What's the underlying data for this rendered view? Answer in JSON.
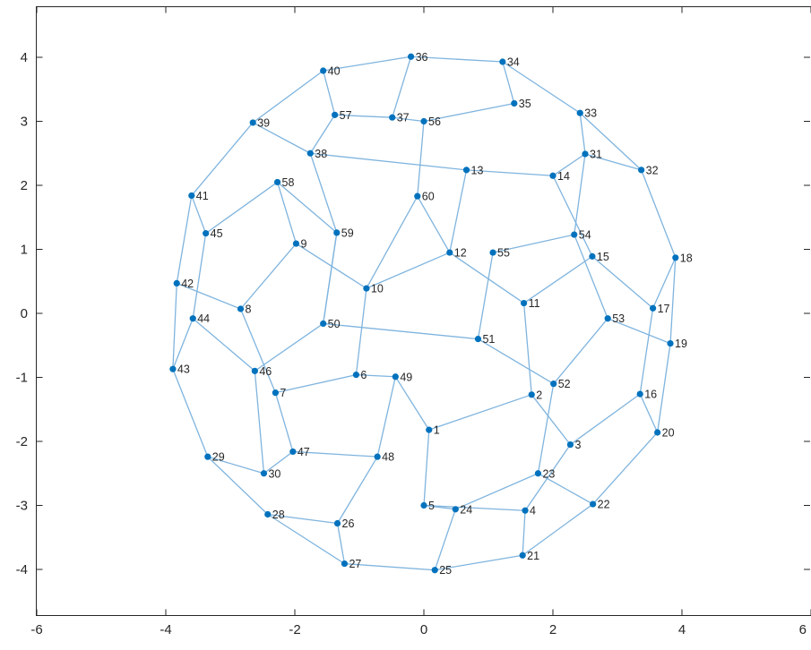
{
  "colors": {
    "edge": "#7fb4de",
    "node": "#0072bd",
    "axis": "#262626",
    "background": "#ffffff"
  },
  "chart_data": {
    "type": "graph",
    "title": "",
    "xlabel": "",
    "ylabel": "",
    "xlim": [
      -6,
      6
    ],
    "ylim": [
      -4.7,
      4.7
    ],
    "xticks": [
      -6,
      -4,
      -2,
      0,
      2,
      4,
      6
    ],
    "yticks": [
      -4,
      -3,
      -2,
      -1,
      0,
      1,
      2,
      3,
      4
    ],
    "xtick_labels": [
      "-6",
      "-4",
      "-2",
      "0",
      "2",
      "4",
      "6"
    ],
    "ytick_labels": [
      "-4",
      "-3",
      "-2",
      "-1",
      "0",
      "1",
      "2",
      "3",
      "4"
    ],
    "grid": false,
    "box": true,
    "nodes": [
      {
        "id": "1",
        "x": 0.08,
        "y": -1.82
      },
      {
        "id": "2",
        "x": 1.67,
        "y": -1.27
      },
      {
        "id": "3",
        "x": 2.27,
        "y": -2.05
      },
      {
        "id": "4",
        "x": 1.57,
        "y": -3.08
      },
      {
        "id": "5",
        "x": 0.0,
        "y": -3.0
      },
      {
        "id": "6",
        "x": -1.05,
        "y": -0.96
      },
      {
        "id": "7",
        "x": -2.3,
        "y": -1.24
      },
      {
        "id": "8",
        "x": -2.84,
        "y": 0.07
      },
      {
        "id": "9",
        "x": -1.98,
        "y": 1.09
      },
      {
        "id": "10",
        "x": -0.89,
        "y": 0.39
      },
      {
        "id": "11",
        "x": 1.55,
        "y": 0.16
      },
      {
        "id": "12",
        "x": 0.4,
        "y": 0.95
      },
      {
        "id": "13",
        "x": 0.66,
        "y": 2.24
      },
      {
        "id": "14",
        "x": 2.0,
        "y": 2.15
      },
      {
        "id": "15",
        "x": 2.61,
        "y": 0.89
      },
      {
        "id": "16",
        "x": 3.35,
        "y": -1.26
      },
      {
        "id": "17",
        "x": 3.55,
        "y": 0.08
      },
      {
        "id": "18",
        "x": 3.9,
        "y": 0.87
      },
      {
        "id": "19",
        "x": 3.82,
        "y": -0.47
      },
      {
        "id": "20",
        "x": 3.62,
        "y": -1.86
      },
      {
        "id": "21",
        "x": 1.53,
        "y": -3.78
      },
      {
        "id": "22",
        "x": 2.62,
        "y": -2.98
      },
      {
        "id": "23",
        "x": 1.77,
        "y": -2.5
      },
      {
        "id": "24",
        "x": 0.49,
        "y": -3.06
      },
      {
        "id": "25",
        "x": 0.17,
        "y": -4.01
      },
      {
        "id": "26",
        "x": -1.34,
        "y": -3.28
      },
      {
        "id": "27",
        "x": -1.23,
        "y": -3.91
      },
      {
        "id": "28",
        "x": -2.42,
        "y": -3.14
      },
      {
        "id": "29",
        "x": -3.35,
        "y": -2.24
      },
      {
        "id": "30",
        "x": -2.48,
        "y": -2.5
      },
      {
        "id": "31",
        "x": 2.5,
        "y": 2.49
      },
      {
        "id": "32",
        "x": 3.37,
        "y": 2.24
      },
      {
        "id": "33",
        "x": 2.42,
        "y": 3.13
      },
      {
        "id": "34",
        "x": 1.22,
        "y": 3.93
      },
      {
        "id": "35",
        "x": 1.4,
        "y": 3.28
      },
      {
        "id": "36",
        "x": -0.2,
        "y": 4.01
      },
      {
        "id": "37",
        "x": -0.49,
        "y": 3.06
      },
      {
        "id": "38",
        "x": -1.76,
        "y": 2.5
      },
      {
        "id": "39",
        "x": -2.65,
        "y": 2.98
      },
      {
        "id": "40",
        "x": -1.56,
        "y": 3.79
      },
      {
        "id": "41",
        "x": -3.6,
        "y": 1.84
      },
      {
        "id": "42",
        "x": -3.83,
        "y": 0.47
      },
      {
        "id": "43",
        "x": -3.89,
        "y": -0.87
      },
      {
        "id": "44",
        "x": -3.58,
        "y": -0.08
      },
      {
        "id": "45",
        "x": -3.38,
        "y": 1.25
      },
      {
        "id": "46",
        "x": -2.62,
        "y": -0.9
      },
      {
        "id": "47",
        "x": -2.03,
        "y": -2.16
      },
      {
        "id": "48",
        "x": -0.72,
        "y": -2.24
      },
      {
        "id": "49",
        "x": -0.44,
        "y": -0.99
      },
      {
        "id": "50",
        "x": -1.56,
        "y": -0.16
      },
      {
        "id": "51",
        "x": 0.84,
        "y": -0.4
      },
      {
        "id": "52",
        "x": 2.01,
        "y": -1.1
      },
      {
        "id": "53",
        "x": 2.85,
        "y": -0.08
      },
      {
        "id": "54",
        "x": 2.33,
        "y": 1.23
      },
      {
        "id": "55",
        "x": 1.07,
        "y": 0.95
      },
      {
        "id": "56",
        "x": 0.0,
        "y": 3.0
      },
      {
        "id": "57",
        "x": -1.38,
        "y": 3.1
      },
      {
        "id": "58",
        "x": -2.27,
        "y": 2.05
      },
      {
        "id": "59",
        "x": -1.35,
        "y": 1.26
      },
      {
        "id": "60",
        "x": -0.1,
        "y": 1.83
      }
    ],
    "edges": [
      [
        "1",
        "2"
      ],
      [
        "1",
        "5"
      ],
      [
        "1",
        "49"
      ],
      [
        "2",
        "3"
      ],
      [
        "2",
        "11"
      ],
      [
        "3",
        "4"
      ],
      [
        "3",
        "16"
      ],
      [
        "4",
        "5"
      ],
      [
        "4",
        "21"
      ],
      [
        "5",
        "24"
      ],
      [
        "6",
        "7"
      ],
      [
        "6",
        "10"
      ],
      [
        "6",
        "49"
      ],
      [
        "7",
        "8"
      ],
      [
        "7",
        "47"
      ],
      [
        "8",
        "9"
      ],
      [
        "8",
        "42"
      ],
      [
        "9",
        "10"
      ],
      [
        "9",
        "58"
      ],
      [
        "10",
        "12"
      ],
      [
        "11",
        "12"
      ],
      [
        "11",
        "15"
      ],
      [
        "12",
        "13"
      ],
      [
        "13",
        "14"
      ],
      [
        "13",
        "38"
      ],
      [
        "14",
        "15"
      ],
      [
        "14",
        "31"
      ],
      [
        "15",
        "17"
      ],
      [
        "16",
        "17"
      ],
      [
        "16",
        "20"
      ],
      [
        "17",
        "18"
      ],
      [
        "18",
        "19"
      ],
      [
        "18",
        "32"
      ],
      [
        "19",
        "20"
      ],
      [
        "19",
        "53"
      ],
      [
        "20",
        "22"
      ],
      [
        "21",
        "22"
      ],
      [
        "21",
        "25"
      ],
      [
        "22",
        "23"
      ],
      [
        "23",
        "24"
      ],
      [
        "23",
        "52"
      ],
      [
        "24",
        "25"
      ],
      [
        "25",
        "27"
      ],
      [
        "26",
        "27"
      ],
      [
        "26",
        "28"
      ],
      [
        "26",
        "48"
      ],
      [
        "27",
        "28"
      ],
      [
        "28",
        "29"
      ],
      [
        "29",
        "30"
      ],
      [
        "29",
        "43"
      ],
      [
        "30",
        "46"
      ],
      [
        "30",
        "47"
      ],
      [
        "31",
        "32"
      ],
      [
        "31",
        "33"
      ],
      [
        "32",
        "33"
      ],
      [
        "33",
        "34"
      ],
      [
        "34",
        "35"
      ],
      [
        "34",
        "36"
      ],
      [
        "35",
        "56"
      ],
      [
        "36",
        "37"
      ],
      [
        "36",
        "40"
      ],
      [
        "37",
        "56"
      ],
      [
        "37",
        "57"
      ],
      [
        "38",
        "39"
      ],
      [
        "38",
        "59"
      ],
      [
        "39",
        "40"
      ],
      [
        "39",
        "41"
      ],
      [
        "40",
        "57"
      ],
      [
        "41",
        "42"
      ],
      [
        "41",
        "45"
      ],
      [
        "42",
        "43"
      ],
      [
        "43",
        "44"
      ],
      [
        "44",
        "45"
      ],
      [
        "44",
        "46"
      ],
      [
        "45",
        "58"
      ],
      [
        "46",
        "50"
      ],
      [
        "47",
        "48"
      ],
      [
        "48",
        "49"
      ],
      [
        "50",
        "51"
      ],
      [
        "50",
        "59"
      ],
      [
        "51",
        "52"
      ],
      [
        "51",
        "55"
      ],
      [
        "52",
        "53"
      ],
      [
        "53",
        "54"
      ],
      [
        "54",
        "55"
      ],
      [
        "54",
        "31"
      ],
      [
        "56",
        "60"
      ],
      [
        "57",
        "38"
      ],
      [
        "58",
        "59"
      ],
      [
        "59",
        "50"
      ],
      [
        "60",
        "10"
      ],
      [
        "60",
        "12"
      ]
    ]
  }
}
